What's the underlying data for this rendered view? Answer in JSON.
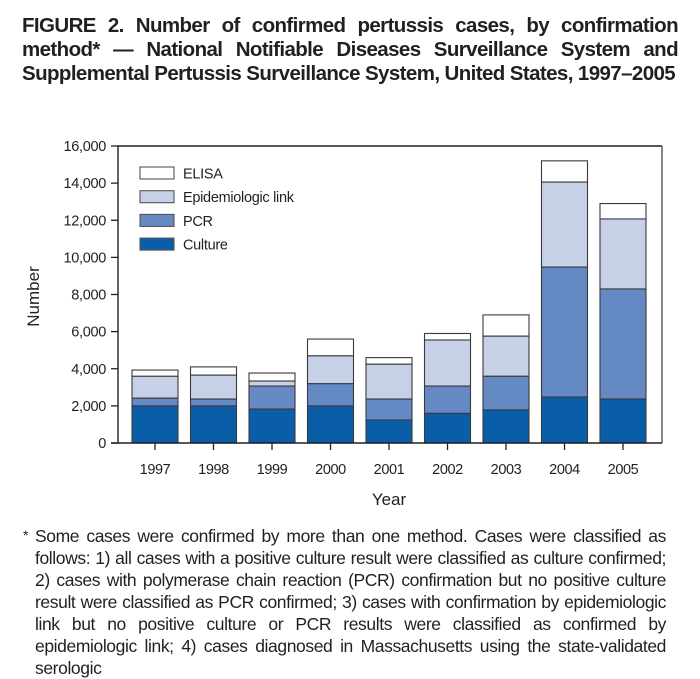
{
  "figure": {
    "title": "FIGURE 2. Number of confirmed pertussis cases, by confirmation method* — National Notifiable Diseases Surveillance System and Supplemental Pertussis Surveillance System, United States, 1997–2005",
    "footnote_marker": "*",
    "footnote": "Some cases were confirmed by more than one method. Cases were classified as follows: 1) all cases with a positive culture result were classified as culture confirmed; 2) cases with polymerase chain reaction (PCR) confirmation but no positive culture result were classified as PCR confirmed; 3) cases with confirmation by epidemiologic link but no positive culture or PCR results were classified as confirmed by epidemiologic link; 4) cases diagnosed in Massachusetts using the state-validated serologic"
  },
  "chart_data": {
    "type": "bar",
    "stacked": true,
    "title": "Number of confirmed pertussis cases, by confirmation method",
    "xlabel": "Year",
    "ylabel": "Number",
    "ylim": [
      0,
      16000
    ],
    "yticks": [
      0,
      2000,
      4000,
      6000,
      8000,
      10000,
      12000,
      14000,
      16000
    ],
    "ytick_labels": [
      "0",
      "2,000",
      "4,000",
      "6,000",
      "8,000",
      "10,000",
      "12,000",
      "14,000",
      "16,000"
    ],
    "categories": [
      "1997",
      "1998",
      "1999",
      "2000",
      "2001",
      "2002",
      "2003",
      "2004",
      "2005"
    ],
    "grid": false,
    "legend_position": "top-left",
    "legend_order": [
      "ELISA",
      "Epidemiologic link",
      "PCR",
      "Culture"
    ],
    "series": [
      {
        "name": "Culture",
        "color": "#0a5ea8",
        "values": [
          2000,
          2000,
          1830,
          2000,
          1240,
          1600,
          1780,
          2480,
          2370
        ]
      },
      {
        "name": "PCR",
        "color": "#6489c3",
        "values": [
          420,
          370,
          1240,
          1200,
          1130,
          1470,
          1820,
          7000,
          5930
        ]
      },
      {
        "name": "Epidemiologic link",
        "color": "#c6d1e8",
        "values": [
          1180,
          1290,
          270,
          1500,
          1880,
          2480,
          2160,
          4580,
          3770
        ]
      },
      {
        "name": "ELISA",
        "color": "#ffffff",
        "values": [
          330,
          440,
          430,
          900,
          350,
          350,
          1140,
          1140,
          830
        ]
      }
    ]
  }
}
